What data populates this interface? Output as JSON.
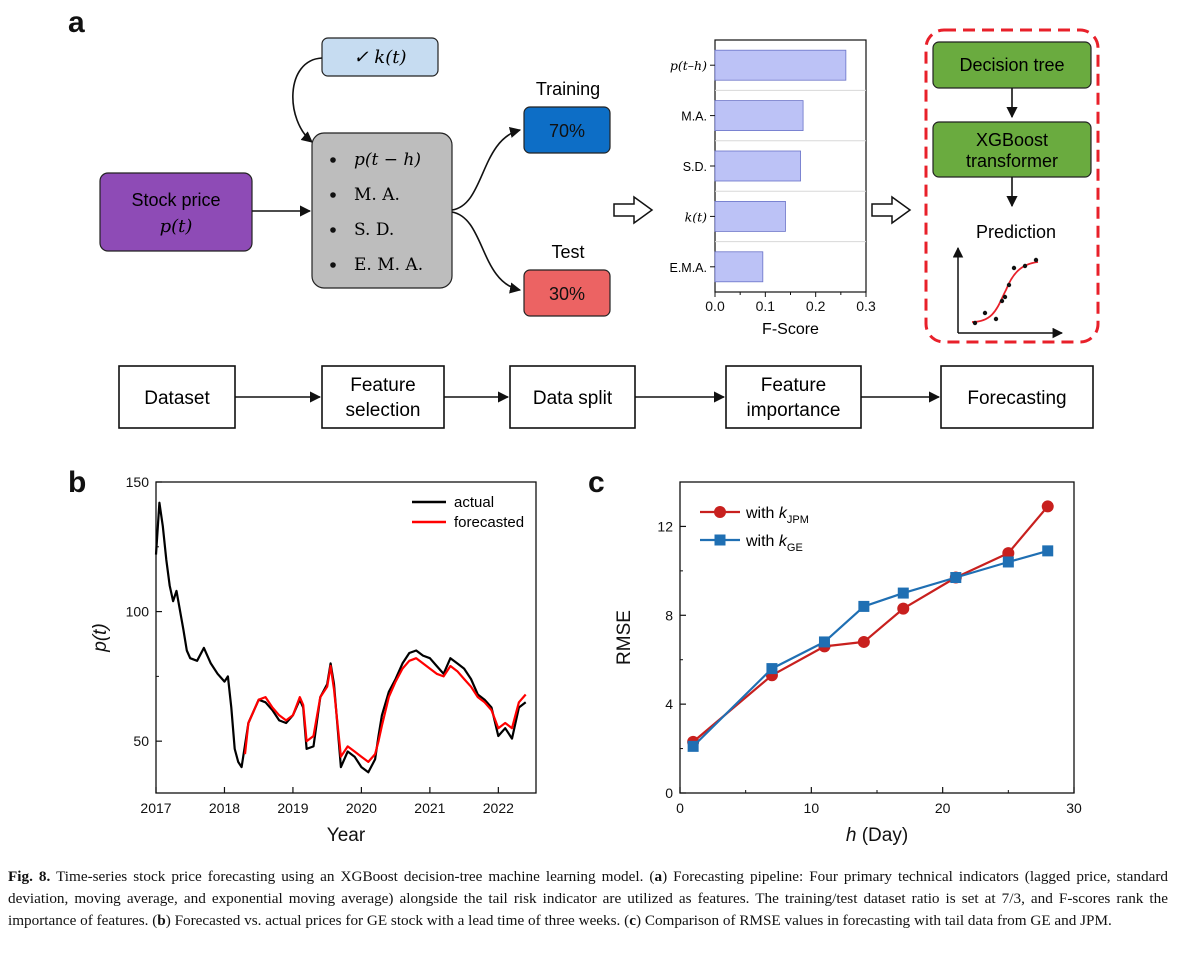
{
  "panel_a": {
    "letter": "a",
    "stock_price": {
      "line1": "Stock price",
      "line2": "p(t)"
    },
    "kt_box": "✓ k(t)",
    "features": [
      "p(t − h)",
      "M. A.",
      "S. D.",
      "E. M. A."
    ],
    "training": {
      "label": "Training",
      "value": "70%"
    },
    "test": {
      "label": "Test",
      "value": "30%"
    },
    "fscore_chart": {
      "type": "bar",
      "orientation": "horizontal",
      "categories": [
        "p(t–h)",
        "M.A.",
        "S.D.",
        "k(t)",
        "E.M.A."
      ],
      "values": [
        0.26,
        0.175,
        0.17,
        0.14,
        0.095
      ],
      "xlabel": "F-Score",
      "xlim": [
        0.0,
        0.3
      ],
      "xticks": [
        "0.0",
        "0.1",
        "0.2",
        "0.3"
      ],
      "bar_color": "#bcc2f6"
    },
    "model": {
      "decision_tree": "Decision tree",
      "xgboost": [
        "XGBoost",
        "transformer"
      ],
      "prediction": "Prediction"
    },
    "pipeline": [
      "Dataset",
      [
        "Feature",
        "selection"
      ],
      "Data split",
      [
        "Feature",
        "importance"
      ],
      "Forecasting"
    ]
  },
  "chart_data": [
    {
      "panel": "b",
      "type": "line",
      "xlabel": "Year",
      "ylabel": "p(t)",
      "xlim": [
        2017.0,
        2022.55
      ],
      "ylim": [
        30,
        150
      ],
      "xticks": [
        "2017",
        "2018",
        "2019",
        "2020",
        "2021",
        "2022"
      ],
      "yticks": [
        "50",
        "100",
        "150"
      ],
      "legend_position": "top-right",
      "series": [
        {
          "name": "actual",
          "color": "#000000",
          "x": [
            2017.0,
            2017.05,
            2017.1,
            2017.15,
            2017.2,
            2017.25,
            2017.3,
            2017.4,
            2017.45,
            2017.5,
            2017.6,
            2017.7,
            2017.8,
            2017.9,
            2018.0,
            2018.05,
            2018.1,
            2018.15,
            2018.2,
            2018.25,
            2018.35,
            2018.5,
            2018.6,
            2018.7,
            2018.8,
            2018.9,
            2019.0,
            2019.1,
            2019.15,
            2019.2,
            2019.3,
            2019.4,
            2019.5,
            2019.55,
            2019.6,
            2019.7,
            2019.8,
            2019.9,
            2020.0,
            2020.1,
            2020.2,
            2020.25,
            2020.3,
            2020.4,
            2020.5,
            2020.6,
            2020.7,
            2020.8,
            2020.9,
            2021.0,
            2021.1,
            2021.2,
            2021.3,
            2021.4,
            2021.5,
            2021.6,
            2021.7,
            2021.8,
            2021.9,
            2022.0,
            2022.1,
            2022.2,
            2022.3,
            2022.4
          ],
          "y": [
            122,
            142,
            133,
            120,
            110,
            104,
            108,
            93,
            85,
            82,
            81,
            86,
            80,
            76,
            73,
            75,
            63,
            47,
            42,
            40,
            57,
            66,
            65,
            62,
            58,
            57,
            60,
            66,
            63,
            47,
            48,
            67,
            72,
            80,
            72,
            40,
            46,
            44,
            40,
            38,
            43,
            52,
            60,
            69,
            74,
            80,
            84,
            85,
            83,
            82,
            79,
            76,
            82,
            80,
            78,
            74,
            68,
            66,
            63,
            52,
            55,
            51,
            63,
            65
          ]
        },
        {
          "name": "forecasted",
          "color": "#ff0000",
          "x": [
            2018.3,
            2018.35,
            2018.5,
            2018.6,
            2018.7,
            2018.8,
            2018.9,
            2019.0,
            2019.1,
            2019.15,
            2019.2,
            2019.3,
            2019.4,
            2019.5,
            2019.55,
            2019.6,
            2019.7,
            2019.8,
            2019.9,
            2020.0,
            2020.1,
            2020.2,
            2020.25,
            2020.3,
            2020.4,
            2020.5,
            2020.6,
            2020.7,
            2020.8,
            2020.9,
            2021.0,
            2021.1,
            2021.2,
            2021.3,
            2021.4,
            2021.5,
            2021.6,
            2021.7,
            2021.8,
            2021.9,
            2022.0,
            2022.1,
            2022.2,
            2022.3,
            2022.4
          ],
          "y": [
            45,
            57,
            66,
            67,
            63,
            60,
            58,
            60,
            67,
            64,
            50,
            52,
            67,
            71,
            79,
            70,
            44,
            48,
            46,
            44,
            42,
            45,
            50,
            56,
            67,
            73,
            78,
            81,
            82,
            80,
            78,
            76,
            75,
            79,
            77,
            74,
            71,
            67,
            65,
            62,
            55,
            57,
            55,
            65,
            68
          ]
        }
      ]
    },
    {
      "panel": "c",
      "type": "line",
      "xlabel": "h (Day)",
      "ylabel": "RMSE",
      "xlim": [
        0,
        30
      ],
      "ylim": [
        0,
        14
      ],
      "xticks": [
        "0",
        "10",
        "20",
        "30"
      ],
      "yticks": [
        "0",
        "4",
        "8",
        "12"
      ],
      "legend_position": "top-left",
      "series": [
        {
          "name": "with k_JPM",
          "color": "#c8201e",
          "marker": "circle",
          "x": [
            1,
            7,
            11,
            14,
            17,
            21,
            25,
            28
          ],
          "y": [
            2.3,
            5.3,
            6.6,
            6.8,
            8.3,
            9.7,
            10.8,
            12.9
          ]
        },
        {
          "name": "with k_GE",
          "color": "#1f6fb3",
          "marker": "square",
          "x": [
            1,
            7,
            11,
            14,
            17,
            21,
            25,
            28
          ],
          "y": [
            2.1,
            5.6,
            6.8,
            8.4,
            9.0,
            9.7,
            10.4,
            10.9
          ]
        }
      ]
    }
  ],
  "caption": {
    "label": "Fig. 8.",
    "text_1": " Time-series stock price forecasting using an XGBoost decision-tree machine learning model. (",
    "a": "a",
    "text_2": ") Forecasting pipeline: Four primary technical indicators (lagged price, standard deviation, moving average, and exponential moving average) alongside the tail risk indicator are utilized as features. The training/test dataset ratio is set at 7/3, and F-scores rank the importance of features. (",
    "b": "b",
    "text_3": ") Forecasted vs. actual prices for GE stock with a lead time of three weeks. (",
    "c": "c",
    "text_4": ") Comparison of RMSE values in forecasting with tail data from GE and JPM."
  }
}
